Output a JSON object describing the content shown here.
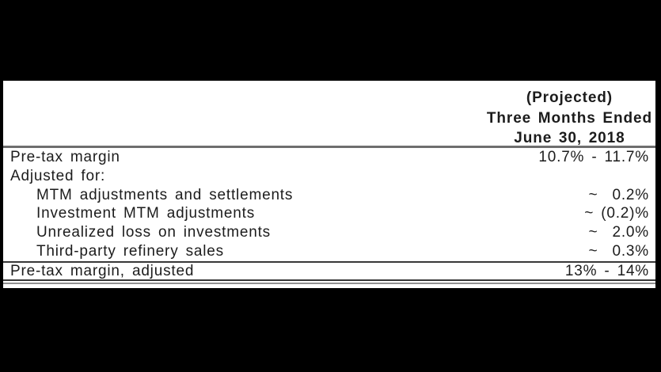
{
  "frame": {
    "background": "#000000",
    "slide_background": "#ffffff"
  },
  "table": {
    "header": {
      "projected_label": "(Projected)",
      "period_label": "Three Months Ended",
      "date_label": "June 30, 2018"
    },
    "rows": [
      {
        "label": "Pre-tax margin",
        "value": "10.7% - 11.7%"
      },
      {
        "label": "Adjusted for:",
        "value": ""
      },
      {
        "label": "MTM adjustments and settlements",
        "value": "~  0.2%"
      },
      {
        "label": "Investment MTM adjustments",
        "value": "~ (0.2)%"
      },
      {
        "label": "Unrealized loss on investments",
        "value": "~  2.0%"
      },
      {
        "label": "Third-party refinery sales",
        "value": "~  0.3%"
      }
    ],
    "total_row": {
      "label": "Pre-tax margin, adjusted",
      "value": "13% - 14%"
    }
  },
  "colors": {
    "text": "#1c1c1c",
    "rule_top": "#6e6e6e",
    "rule_single": "#383838",
    "rule_double_dark": "#383838",
    "rule_double_light": "#919191"
  }
}
